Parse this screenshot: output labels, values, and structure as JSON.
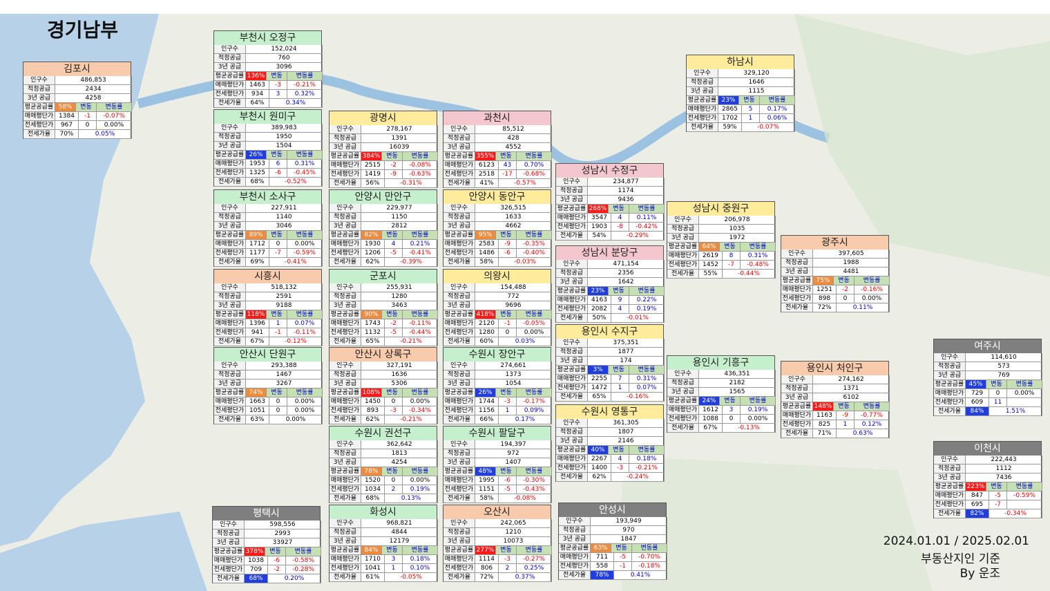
{
  "title": "경기남부",
  "row_labels": [
    "인구수",
    "적정공급",
    "3년 공급",
    "평균공급률",
    "매매평단가",
    "전세평단가",
    "전세가율"
  ],
  "change_headers": [
    "변동",
    "변동률"
  ],
  "regions": [
    {
      "name": "김포시",
      "population": "486,853",
      "proper_supply": "2434",
      "supply_3y": "4258",
      "supply_ratio": "58%",
      "sale": [
        "1384",
        "-1",
        "-0.07%"
      ],
      "jeonse": [
        "967",
        "0",
        "0.00%"
      ],
      "jeonse_ratio": [
        "70%",
        "0.05%"
      ]
    },
    {
      "name": "부천시 오정구",
      "population": "152,024",
      "proper_supply": "760",
      "supply_3y": "3096",
      "supply_ratio": "136%",
      "sale": [
        "1463",
        "-3",
        "-0.21%"
      ],
      "jeonse": [
        "934",
        "3",
        "0.32%"
      ],
      "jeonse_ratio": [
        "64%",
        "0.34%"
      ]
    },
    {
      "name": "부천시 원미구",
      "population": "389,983",
      "proper_supply": "1950",
      "supply_3y": "1504",
      "supply_ratio": "26%",
      "sale": [
        "1953",
        "6",
        "0.31%"
      ],
      "jeonse": [
        "1325",
        "-6",
        "-0.45%"
      ],
      "jeonse_ratio": [
        "68%",
        "-0.52%"
      ]
    },
    {
      "name": "광명시",
      "population": "278,167",
      "proper_supply": "1391",
      "supply_3y": "16039",
      "supply_ratio": "384%",
      "sale": [
        "2515",
        "-2",
        "-0.08%"
      ],
      "jeonse": [
        "1419",
        "-9",
        "-0.63%"
      ],
      "jeonse_ratio": [
        "56%",
        "-0.31%"
      ]
    },
    {
      "name": "과천시",
      "population": "85,512",
      "proper_supply": "428",
      "supply_3y": "4552",
      "supply_ratio": "355%",
      "sale": [
        "6123",
        "43",
        "0.70%"
      ],
      "jeonse": [
        "2518",
        "-17",
        "-0.68%"
      ],
      "jeonse_ratio": [
        "41%",
        "-0.57%"
      ]
    },
    {
      "name": "하남시",
      "population": "329,120",
      "proper_supply": "1646",
      "supply_3y": "1115",
      "supply_ratio": "23%",
      "sale": [
        "2865",
        "5",
        "0.17%"
      ],
      "jeonse": [
        "1702",
        "1",
        "0.06%"
      ],
      "jeonse_ratio": [
        "59%",
        "-0.07%"
      ]
    },
    {
      "name": "성남시 수정구",
      "population": "234,877",
      "proper_supply": "1174",
      "supply_3y": "9436",
      "supply_ratio": "268%",
      "sale": [
        "3547",
        "4",
        "0.11%"
      ],
      "jeonse": [
        "1903",
        "-8",
        "-0.42%"
      ],
      "jeonse_ratio": [
        "54%",
        "-0.29%"
      ]
    },
    {
      "name": "부천시 소사구",
      "population": "227,911",
      "proper_supply": "1140",
      "supply_3y": "3046",
      "supply_ratio": "89%",
      "sale": [
        "1712",
        "0",
        "0.00%"
      ],
      "jeonse": [
        "1177",
        "-7",
        "-0.59%"
      ],
      "jeonse_ratio": [
        "69%",
        "-0.41%"
      ]
    },
    {
      "name": "안양시 만안구",
      "population": "229,977",
      "proper_supply": "1150",
      "supply_3y": "2812",
      "supply_ratio": "82%",
      "sale": [
        "1930",
        "4",
        "0.21%"
      ],
      "jeonse": [
        "1206",
        "-5",
        "-0.41%"
      ],
      "jeonse_ratio": [
        "62%",
        "-0.39%"
      ]
    },
    {
      "name": "안양시 동안구",
      "population": "326,515",
      "proper_supply": "1633",
      "supply_3y": "4662",
      "supply_ratio": "95%",
      "sale": [
        "2583",
        "-9",
        "-0.35%"
      ],
      "jeonse": [
        "1486",
        "-6",
        "-0.40%"
      ],
      "jeonse_ratio": [
        "58%",
        "-0.03%"
      ]
    },
    {
      "name": "성남시 중원구",
      "population": "206,978",
      "proper_supply": "1035",
      "supply_3y": "1972",
      "supply_ratio": "64%",
      "sale": [
        "2619",
        "8",
        "0.31%"
      ],
      "jeonse": [
        "1452",
        "-7",
        "-0.48%"
      ],
      "jeonse_ratio": [
        "55%",
        "-0.44%"
      ]
    },
    {
      "name": "광주시",
      "population": "397,605",
      "proper_supply": "1988",
      "supply_3y": "4481",
      "supply_ratio": "75%",
      "sale": [
        "1251",
        "-2",
        "-0.16%"
      ],
      "jeonse": [
        "898",
        "0",
        "0.00%"
      ],
      "jeonse_ratio": [
        "72%",
        "0.11%"
      ]
    },
    {
      "name": "성남시 분당구",
      "population": "471,154",
      "proper_supply": "2356",
      "supply_3y": "1642",
      "supply_ratio": "23%",
      "sale": [
        "4163",
        "9",
        "0.22%"
      ],
      "jeonse": [
        "2082",
        "4",
        "0.19%"
      ],
      "jeonse_ratio": [
        "50%",
        "-0.01%"
      ]
    },
    {
      "name": "시흥시",
      "population": "518,132",
      "proper_supply": "2591",
      "supply_3y": "9188",
      "supply_ratio": "118%",
      "sale": [
        "1396",
        "1",
        "0.07%"
      ],
      "jeonse": [
        "941",
        "-1",
        "-0.11%"
      ],
      "jeonse_ratio": [
        "67%",
        "-0.12%"
      ]
    },
    {
      "name": "군포시",
      "population": "255,931",
      "proper_supply": "1280",
      "supply_3y": "3463",
      "supply_ratio": "90%",
      "sale": [
        "1743",
        "-2",
        "-0.11%"
      ],
      "jeonse": [
        "1132",
        "-5",
        "-0.44%"
      ],
      "jeonse_ratio": [
        "65%",
        "-0.21%"
      ]
    },
    {
      "name": "의왕시",
      "population": "154,488",
      "proper_supply": "772",
      "supply_3y": "9696",
      "supply_ratio": "418%",
      "sale": [
        "2120",
        "-1",
        "-0.05%"
      ],
      "jeonse": [
        "1280",
        "0",
        "0.00%"
      ],
      "jeonse_ratio": [
        "60%",
        "0.03%"
      ]
    },
    {
      "name": "용인시 수지구",
      "population": "375,351",
      "proper_supply": "1877",
      "supply_3y": "174",
      "supply_ratio": "3%",
      "sale": [
        "2255",
        "7",
        "0.31%"
      ],
      "jeonse": [
        "1472",
        "1",
        "0.07%"
      ],
      "jeonse_ratio": [
        "65%",
        "-0.16%"
      ]
    },
    {
      "name": "여주시",
      "population": "114,610",
      "proper_supply": "573",
      "supply_3y": "769",
      "supply_ratio": "45%",
      "sale": [
        "729",
        "0",
        "0.00%"
      ],
      "jeonse": [
        "609",
        "11",
        null
      ],
      "jeonse_ratio": [
        "84%",
        "1.51%"
      ]
    },
    {
      "name": "안산시 단원구",
      "population": "293,388",
      "proper_supply": "1467",
      "supply_3y": "3267",
      "supply_ratio": "74%",
      "sale": [
        "1663",
        "0",
        "0.00%"
      ],
      "jeonse": [
        "1051",
        "0",
        "0.00%"
      ],
      "jeonse_ratio": [
        "63%",
        "0.00%"
      ]
    },
    {
      "name": "안산시 상록구",
      "population": "327,191",
      "proper_supply": "1636",
      "supply_3y": "5306",
      "supply_ratio": "108%",
      "sale": [
        "1450",
        "0",
        "0.00%"
      ],
      "jeonse": [
        "893",
        "-3",
        "-0.34%"
      ],
      "jeonse_ratio": [
        "62%",
        "-0.21%"
      ]
    },
    {
      "name": "수원시 장안구",
      "population": "274,661",
      "proper_supply": "1373",
      "supply_3y": "1054",
      "supply_ratio": "26%",
      "sale": [
        "1744",
        "-3",
        "-0.17%"
      ],
      "jeonse": [
        "1156",
        "1",
        "0.09%"
      ],
      "jeonse_ratio": [
        "66%",
        "0.17%"
      ]
    },
    {
      "name": "용인시 기흥구",
      "population": "436,351",
      "proper_supply": "2182",
      "supply_3y": "1565",
      "supply_ratio": "24%",
      "sale": [
        "1612",
        "3",
        "0.19%"
      ],
      "jeonse": [
        "1088",
        "0",
        "0.00%"
      ],
      "jeonse_ratio": [
        "67%",
        "-0.13%"
      ]
    },
    {
      "name": "용인시 처인구",
      "population": "274,162",
      "proper_supply": "1371",
      "supply_3y": "6102",
      "supply_ratio": "148%",
      "sale": [
        "1163",
        "-9",
        "-0.77%"
      ],
      "jeonse": [
        "825",
        "1",
        "0.12%"
      ],
      "jeonse_ratio": [
        "71%",
        "0.63%"
      ]
    },
    {
      "name": "수원시 영통구",
      "population": "361,305",
      "proper_supply": "1807",
      "supply_3y": "2146",
      "supply_ratio": "40%",
      "sale": [
        "2267",
        "4",
        "0.18%"
      ],
      "jeonse": [
        "1400",
        "-3",
        "-0.21%"
      ],
      "jeonse_ratio": [
        "62%",
        "-0.24%"
      ]
    },
    {
      "name": "수원시 권선구",
      "population": "362,642",
      "proper_supply": "1813",
      "supply_3y": "4254",
      "supply_ratio": "78%",
      "sale": [
        "1520",
        "0",
        "0.00%"
      ],
      "jeonse": [
        "1034",
        "2",
        "0.19%"
      ],
      "jeonse_ratio": [
        "68%",
        "0.13%"
      ]
    },
    {
      "name": "수원시 팔달구",
      "population": "194,397",
      "proper_supply": "972",
      "supply_3y": "1407",
      "supply_ratio": "48%",
      "sale": [
        "1995",
        "-6",
        "-0.30%"
      ],
      "jeonse": [
        "1151",
        "-5",
        "-0.43%"
      ],
      "jeonse_ratio": [
        "58%",
        "-0.08%"
      ]
    },
    {
      "name": "이천시",
      "population": "222,443",
      "proper_supply": "1112",
      "supply_3y": "7436",
      "supply_ratio": "223%",
      "sale": [
        "847",
        "-5",
        "-0.59%"
      ],
      "jeonse": [
        "695",
        "-7",
        null
      ],
      "jeonse_ratio": [
        "82%",
        "-0.34%"
      ]
    },
    {
      "name": "평택시",
      "population": "598,556",
      "proper_supply": "2993",
      "supply_3y": "33927",
      "supply_ratio": "378%",
      "sale": [
        "1038",
        "-6",
        "-0.58%"
      ],
      "jeonse": [
        "709",
        "-2",
        "-0.28%"
      ],
      "jeonse_ratio": [
        "68%",
        "0.20%"
      ]
    },
    {
      "name": "화성시",
      "population": "968,821",
      "proper_supply": "4844",
      "supply_3y": "12179",
      "supply_ratio": "84%",
      "sale": [
        "1710",
        "3",
        "0.18%"
      ],
      "jeonse": [
        "1041",
        "1",
        "0.10%"
      ],
      "jeonse_ratio": [
        "61%",
        "-0.05%"
      ]
    },
    {
      "name": "오산시",
      "population": "242,065",
      "proper_supply": "1210",
      "supply_3y": "10073",
      "supply_ratio": "277%",
      "sale": [
        "1114",
        "-3",
        "-0.27%"
      ],
      "jeonse": [
        "806",
        "2",
        "0.25%"
      ],
      "jeonse_ratio": [
        "72%",
        "0.37%"
      ]
    },
    {
      "name": "안성시",
      "population": "193,949",
      "proper_supply": "970",
      "supply_3y": "1847",
      "supply_ratio": "63%",
      "sale": [
        "711",
        "-5",
        "-0.70%"
      ],
      "jeonse": [
        "558",
        "-1",
        "-0.18%"
      ],
      "jeonse_ratio": [
        "78%",
        "0.41%"
      ]
    }
  ],
  "footer": [
    "2024.01.01 / 2025.02.01",
    "부동산지인 기준",
    "By 운조"
  ]
}
